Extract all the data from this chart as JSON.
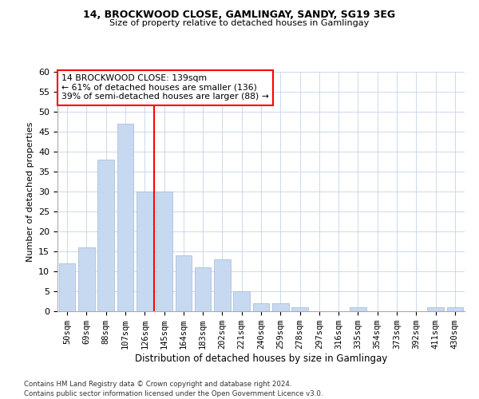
{
  "title1": "14, BROCKWOOD CLOSE, GAMLINGAY, SANDY, SG19 3EG",
  "title2": "Size of property relative to detached houses in Gamlingay",
  "xlabel": "Distribution of detached houses by size in Gamlingay",
  "ylabel": "Number of detached properties",
  "bar_labels": [
    "50sqm",
    "69sqm",
    "88sqm",
    "107sqm",
    "126sqm",
    "145sqm",
    "164sqm",
    "183sqm",
    "202sqm",
    "221sqm",
    "240sqm",
    "259sqm",
    "278sqm",
    "297sqm",
    "316sqm",
    "335sqm",
    "354sqm",
    "373sqm",
    "392sqm",
    "411sqm",
    "430sqm"
  ],
  "bar_values": [
    12,
    16,
    38,
    47,
    30,
    30,
    14,
    11,
    13,
    5,
    2,
    2,
    1,
    0,
    0,
    1,
    0,
    0,
    0,
    1,
    1
  ],
  "bar_color": "#c6d9f0",
  "bar_edge_color": "#a0b8d8",
  "ylim": [
    0,
    60
  ],
  "yticks": [
    0,
    5,
    10,
    15,
    20,
    25,
    30,
    35,
    40,
    45,
    50,
    55,
    60
  ],
  "annotation_text": "14 BROCKWOOD CLOSE: 139sqm\n← 61% of detached houses are smaller (136)\n39% of semi-detached houses are larger (88) →",
  "footer1": "Contains HM Land Registry data © Crown copyright and database right 2024.",
  "footer2": "Contains public sector information licensed under the Open Government Licence v3.0.",
  "background_color": "#ffffff",
  "grid_color": "#ccd8ec"
}
